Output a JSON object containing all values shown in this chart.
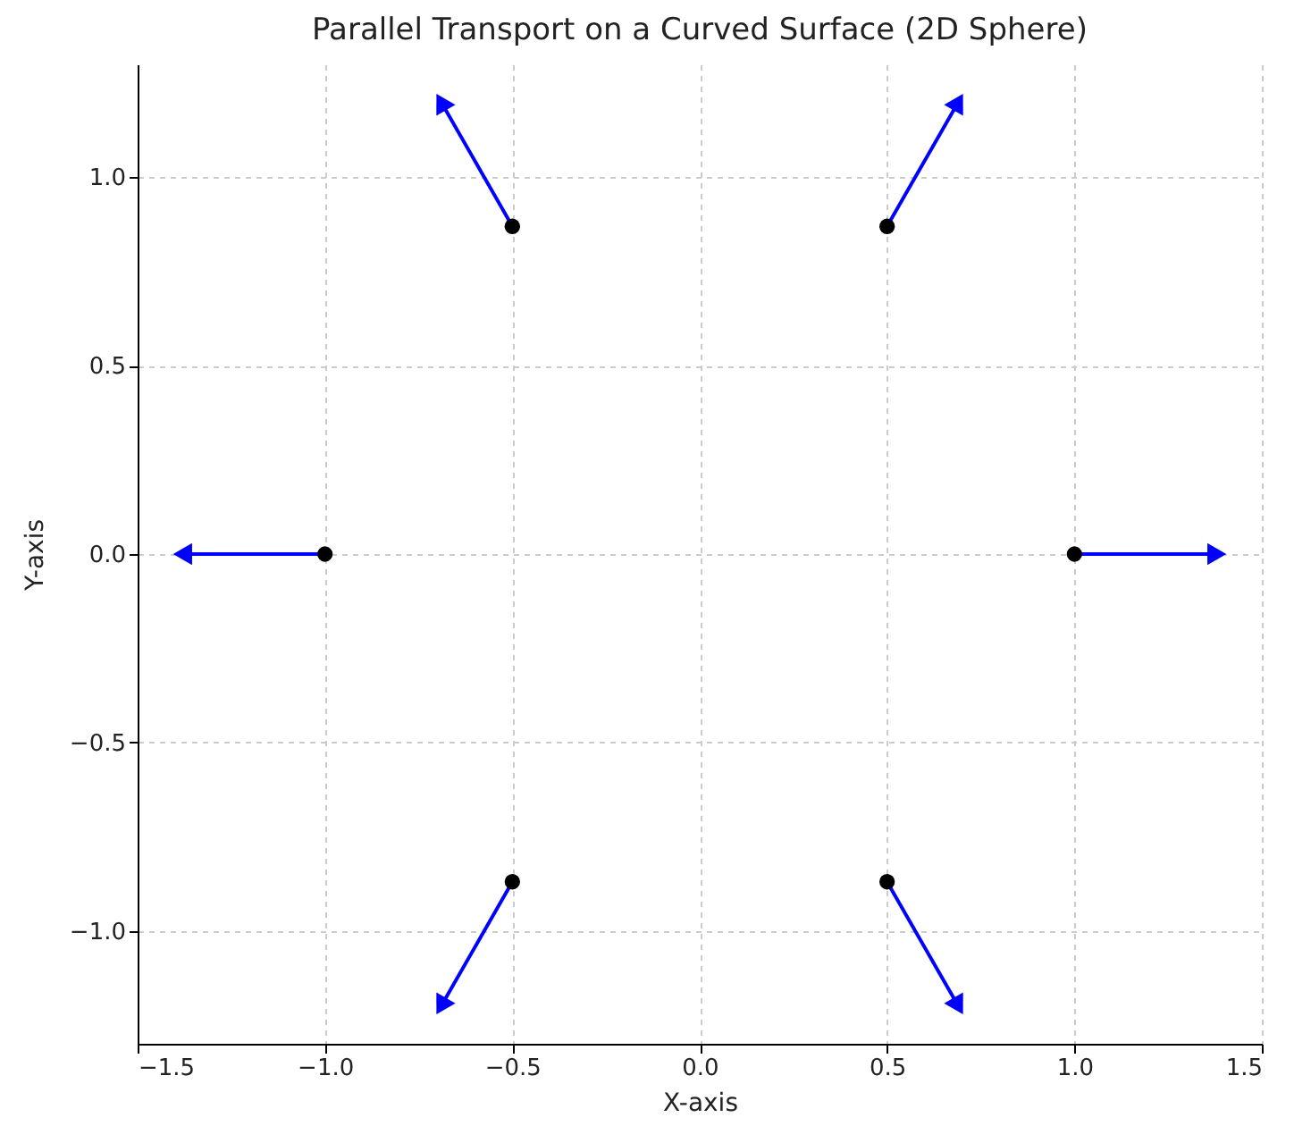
{
  "chart_data": {
    "type": "scatter",
    "title": "Parallel Transport on a Curved Surface (2D Sphere)",
    "xlabel": "X-axis",
    "ylabel": "Y-axis",
    "xlim": [
      -1.5,
      1.5
    ],
    "ylim": [
      -1.3,
      1.3
    ],
    "xticks": [
      {
        "value": -1.5,
        "label": "−1.5"
      },
      {
        "value": -1,
        "label": "−1.0"
      },
      {
        "value": -0.5,
        "label": "−0.5"
      },
      {
        "value": 0,
        "label": "0.0"
      },
      {
        "value": 0.5,
        "label": "0.5"
      },
      {
        "value": 1,
        "label": "1.0"
      },
      {
        "value": 1.5,
        "label": "1.5"
      }
    ],
    "yticks": [
      {
        "value": -1,
        "label": "−1.0"
      },
      {
        "value": -0.5,
        "label": "−0.5"
      },
      {
        "value": 0,
        "label": "0.0"
      },
      {
        "value": 0.5,
        "label": "0.5"
      },
      {
        "value": 1,
        "label": "1.0"
      }
    ],
    "grid": true,
    "marker": "circle",
    "series": [
      {
        "type": "line",
        "marker": "triangle",
        "color": "#0000ff",
        "x": [
          1,
          1.38
        ],
        "values": [
          0,
          0
        ]
      },
      {
        "type": "line",
        "marker": "triangle",
        "color": "#0000ff",
        "x": [
          0.5,
          0.69
        ],
        "values": [
          0.87,
          1.2
        ]
      },
      {
        "type": "line",
        "marker": "triangle",
        "color": "#0000ff",
        "x": [
          -0.5,
          -0.69
        ],
        "values": [
          0.87,
          1.2
        ]
      },
      {
        "type": "line",
        "marker": "triangle",
        "color": "#0000ff",
        "x": [
          -1,
          -1.38
        ],
        "values": [
          0,
          0
        ]
      },
      {
        "type": "line",
        "marker": "triangle",
        "color": "#0000ff",
        "x": [
          -0.5,
          -0.69
        ],
        "values": [
          -0.87,
          -1.2
        ]
      },
      {
        "type": "line",
        "marker": "triangle",
        "color": "#0000ff",
        "x": [
          0.5,
          0.69
        ],
        "values": [
          -0.87,
          -1.2
        ]
      },
      {
        "color": "#000000",
        "x": [
          1,
          0.5,
          -0.5,
          -1,
          -0.5,
          0.5
        ],
        "values": [
          0,
          0.87,
          0.87,
          0,
          -0.87,
          -0.87
        ]
      }
    ]
  }
}
